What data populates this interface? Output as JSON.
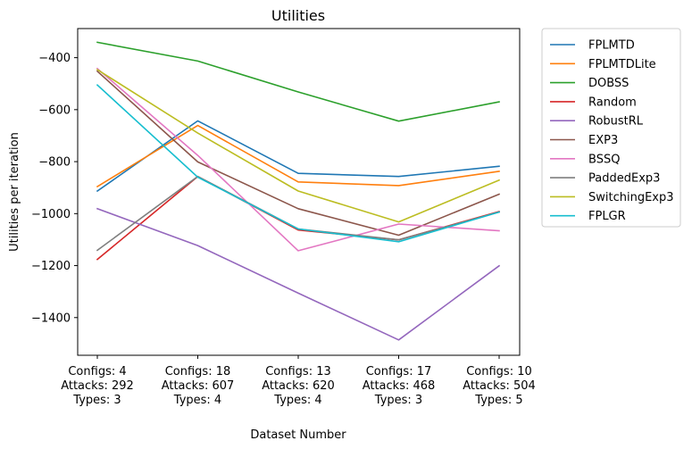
{
  "chart_data": {
    "type": "line",
    "title": "Utilities",
    "xlabel": "Dataset Number",
    "ylabel": "Utilities per iteration",
    "categories": [
      [
        "Configs: 4",
        "Attacks: 292",
        "Types: 3"
      ],
      [
        "Configs: 18",
        "Attacks: 607",
        "Types: 4"
      ],
      [
        "Configs: 13",
        "Attacks: 620",
        "Types: 4"
      ],
      [
        "Configs: 17",
        "Attacks: 468",
        "Types: 3"
      ],
      [
        "Configs: 10",
        "Attacks: 504",
        "Types: 5"
      ]
    ],
    "ylim": [
      -1545,
      -288
    ],
    "yticks": [
      -1400,
      -1200,
      -1000,
      -800,
      -600,
      -400
    ],
    "ytick_labels": [
      "−1400",
      "−1200",
      "−1000",
      "−800",
      "−600",
      "−400"
    ],
    "grid": false,
    "legend_position": "outside-right-top",
    "series": [
      {
        "name": "FPLMTD",
        "color": "#1f77b4",
        "values": [
          -913,
          -643,
          -845,
          -857,
          -818
        ]
      },
      {
        "name": "FPLMTDLite",
        "color": "#ff7f0e",
        "values": [
          -896,
          -661,
          -878,
          -892,
          -837
        ]
      },
      {
        "name": "DOBSS",
        "color": "#2ca02c",
        "values": [
          -341,
          -413,
          -532,
          -644,
          -570
        ]
      },
      {
        "name": "Random",
        "color": "#d62728",
        "values": [
          -1176,
          -857,
          -1063,
          -1101,
          -992
        ]
      },
      {
        "name": "RobustRL",
        "color": "#9467bd",
        "values": [
          -981,
          -1123,
          -1306,
          -1486,
          -1201
        ]
      },
      {
        "name": "EXP3",
        "color": "#8c564b",
        "values": [
          -452,
          -801,
          -981,
          -1083,
          -925
        ]
      },
      {
        "name": "BSSQ",
        "color": "#e377c2",
        "values": [
          -442,
          -776,
          -1143,
          -1040,
          -1066
        ]
      },
      {
        "name": "PaddedExp3",
        "color": "#7f7f7f",
        "values": [
          -1141,
          -857,
          -1059,
          -1101,
          -994
        ]
      },
      {
        "name": "SwitchingExp3",
        "color": "#bcbd22",
        "values": [
          -446,
          -690,
          -913,
          -1032,
          -871
        ]
      },
      {
        "name": "FPLGR",
        "color": "#17becf",
        "values": [
          -505,
          -860,
          -1059,
          -1108,
          -994
        ]
      }
    ]
  }
}
